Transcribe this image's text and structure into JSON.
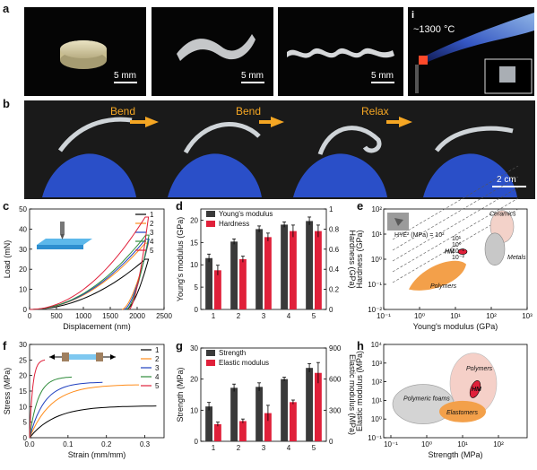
{
  "figure": {
    "panels": {
      "a": {
        "letter": "a",
        "scale_labels": [
          "5 mm",
          "5 mm",
          "5 mm"
        ],
        "inset_letter": "i",
        "temperature": "~1300 °C"
      },
      "b": {
        "letter": "b",
        "steps": [
          "Bend",
          "Bend",
          "Relax"
        ],
        "scale_label": "2 cm"
      },
      "c": {
        "letter": "c"
      },
      "d": {
        "letter": "d"
      },
      "e": {
        "letter": "e"
      },
      "f": {
        "letter": "f"
      },
      "g": {
        "letter": "g"
      },
      "h": {
        "letter": "h"
      }
    }
  },
  "chart_data": [
    {
      "id": "c",
      "type": "line",
      "xlabel": "Displacement (nm)",
      "ylabel": "Load (mN)",
      "xlim": [
        0,
        2500
      ],
      "ylim": [
        0,
        50
      ],
      "xticks": [
        0,
        500,
        1000,
        1500,
        2000,
        2500
      ],
      "yticks": [
        0,
        10,
        20,
        30,
        40,
        50
      ],
      "series": [
        {
          "name": "1",
          "color": "#000000",
          "peak_x": 2150,
          "peak_y": 25,
          "end_x": 1800
        },
        {
          "name": "2",
          "color": "#ff8c1a",
          "peak_x": 2150,
          "peak_y": 33,
          "end_x": 1720
        },
        {
          "name": "3",
          "color": "#1f3fbf",
          "peak_x": 2160,
          "peak_y": 35,
          "end_x": 1760
        },
        {
          "name": "4",
          "color": "#2e8b3a",
          "peak_x": 2160,
          "peak_y": 37,
          "end_x": 1800
        },
        {
          "name": "5",
          "color": "#e0203a",
          "peak_x": 2150,
          "peak_y": 46,
          "end_x": 1850
        }
      ]
    },
    {
      "id": "d",
      "type": "bar",
      "categories": [
        "1",
        "2",
        "3",
        "4",
        "5"
      ],
      "xlabel": "",
      "ylabel": "Young's modulus (GPa)",
      "ylabel_right": "Hardness (GPa)",
      "ylim": [
        0,
        22.5
      ],
      "ylim_right": [
        0,
        1.0
      ],
      "yticks": [
        0,
        5,
        10,
        15,
        20
      ],
      "yticks_right": [
        0,
        0.2,
        0.4,
        0.6,
        0.8,
        1.0
      ],
      "series": [
        {
          "name": "Young's modulus",
          "color": "#3a3a3a",
          "values": [
            11.5,
            15.2,
            18.0,
            19.0,
            19.8
          ],
          "errors": [
            0.9,
            0.6,
            0.7,
            0.6,
            0.9
          ],
          "axis": "left"
        },
        {
          "name": "Hardness",
          "color": "#e0203a",
          "values": [
            0.39,
            0.5,
            0.72,
            0.78,
            0.78
          ],
          "errors": [
            0.05,
            0.03,
            0.04,
            0.06,
            0.06
          ],
          "axis": "right"
        }
      ]
    },
    {
      "id": "e",
      "type": "scatter",
      "xlabel": "Young's modulus (GPa)",
      "ylabel": "Hardness (GPa)",
      "xscale": "log",
      "yscale": "log",
      "xticks": [
        "10⁻¹",
        "10⁰",
        "10¹",
        "10²",
        "10³"
      ],
      "yticks": [
        "10⁻²",
        "10⁻¹",
        "10⁰",
        "10¹",
        "10²"
      ],
      "regions": [
        {
          "name": "Ceramics",
          "color": "#f3d2c9"
        },
        {
          "name": "Metals",
          "color": "#c8c8c8"
        },
        {
          "name": "Polymers",
          "color": "#f3a04a"
        },
        {
          "name": "HM",
          "color": "#e0203a"
        }
      ],
      "guide_title": "H³/E² (MPa) = 10²",
      "guide_labels": [
        "10¹",
        "10⁰",
        "10⁻¹",
        "10⁻²"
      ]
    },
    {
      "id": "f",
      "type": "line",
      "xlabel": "Strain (mm/mm)",
      "ylabel": "Stress (MPa)",
      "xlim": [
        0,
        0.35
      ],
      "ylim": [
        0,
        30
      ],
      "xticks": [
        0.0,
        0.1,
        0.2,
        0.3
      ],
      "xtick_labels": [
        "0.0",
        "0.1",
        "0.2",
        "0.3"
      ],
      "yticks": [
        0,
        5,
        10,
        15,
        20,
        25,
        30
      ],
      "series": [
        {
          "name": "1",
          "color": "#000000",
          "end_x": 0.33,
          "end_y": 10.2
        },
        {
          "name": "2",
          "color": "#ff8c1a",
          "end_x": 0.285,
          "end_y": 17.0
        },
        {
          "name": "3",
          "color": "#1f3fbf",
          "end_x": 0.19,
          "end_y": 17.8
        },
        {
          "name": "4",
          "color": "#2e8b3a",
          "end_x": 0.11,
          "end_y": 19.5
        },
        {
          "name": "5",
          "color": "#e0203a",
          "end_x": 0.04,
          "end_y": 25.0
        }
      ]
    },
    {
      "id": "g",
      "type": "bar",
      "categories": [
        "1",
        "2",
        "3",
        "4",
        "5"
      ],
      "ylabel": "Strength (MPa)",
      "ylabel_right": "Elastic modulus (MPa)",
      "ylim": [
        0,
        30
      ],
      "ylim_right": [
        0,
        900
      ],
      "yticks": [
        0,
        10,
        20,
        30
      ],
      "yticks_right": [
        0,
        300,
        600,
        900
      ],
      "series": [
        {
          "name": "Strength",
          "color": "#3a3a3a",
          "values": [
            11.2,
            17.2,
            17.5,
            20.0,
            23.6
          ],
          "errors": [
            1.3,
            1.2,
            1.3,
            0.6,
            1.4
          ],
          "axis": "left"
        },
        {
          "name": "Elastic modulus",
          "color": "#e0203a",
          "values": [
            165,
            195,
            272,
            378,
            660
          ],
          "errors": [
            20,
            20,
            75,
            20,
            100
          ],
          "axis": "right"
        }
      ]
    },
    {
      "id": "h",
      "type": "scatter",
      "xlabel": "Strength (MPa)",
      "ylabel": "Elastic modulus (MPa)",
      "xscale": "log",
      "yscale": "log",
      "xticks": [
        "10⁻¹",
        "10⁰",
        "10¹",
        "10²"
      ],
      "yticks": [
        "10⁻¹",
        "10⁰",
        "10¹",
        "10²",
        "10³",
        "10⁴"
      ],
      "regions": [
        {
          "name": "Polymeric foams",
          "color": "#d4d4d4"
        },
        {
          "name": "Polymers",
          "color": "#f5d0c8"
        },
        {
          "name": "Elastomers",
          "color": "#f3a04a"
        },
        {
          "name": "HM",
          "color": "#e0203a"
        }
      ]
    }
  ]
}
